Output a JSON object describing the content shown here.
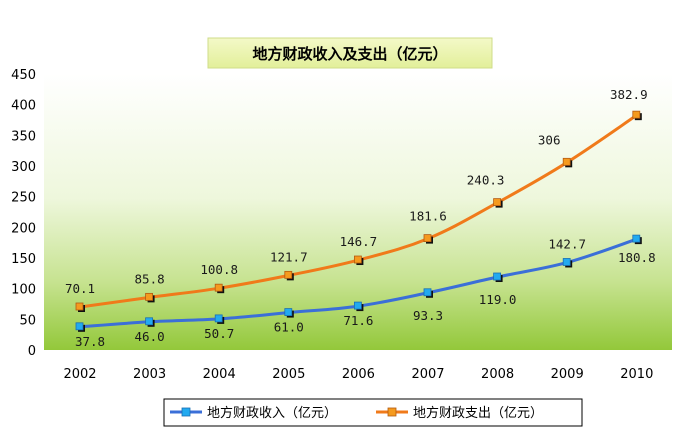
{
  "chart_data": {
    "type": "line",
    "title": "地方财政收入及支出（亿元）",
    "categories": [
      "2002",
      "2003",
      "2004",
      "2005",
      "2006",
      "2007",
      "2008",
      "2009",
      "2010"
    ],
    "ylim": [
      0,
      450
    ],
    "yticks": [
      "0",
      "50",
      "100",
      "150",
      "200",
      "250",
      "300",
      "350",
      "400",
      "450"
    ],
    "ytick_values": [
      0,
      50,
      100,
      150,
      200,
      250,
      300,
      350,
      400,
      450
    ],
    "xlabel": "",
    "ylabel": "",
    "grid": false,
    "legend_position": "bottom",
    "series": [
      {
        "name": "地方财政收入（亿元）",
        "color": "#3b6fd8",
        "marker_color": "#22aaf0",
        "values": [
          37.8,
          46.0,
          50.7,
          61.0,
          71.6,
          93.3,
          119.0,
          142.7,
          180.8
        ],
        "labels": [
          "37.8",
          "46.0",
          "50.7",
          "61.0",
          "71.6",
          "93.3",
          "119.0",
          "142.7",
          "180.8"
        ]
      },
      {
        "name": "地方财政支出（亿元）",
        "color": "#f07a1a",
        "marker_color": "#f59a1e",
        "values": [
          70.1,
          85.8,
          100.8,
          121.7,
          146.7,
          181.6,
          240.3,
          306,
          382.9
        ],
        "labels": [
          "70.1",
          "85.8",
          "100.8",
          "121.7",
          "146.7",
          "181.6",
          "240.3",
          "306",
          "382.9"
        ]
      }
    ]
  }
}
